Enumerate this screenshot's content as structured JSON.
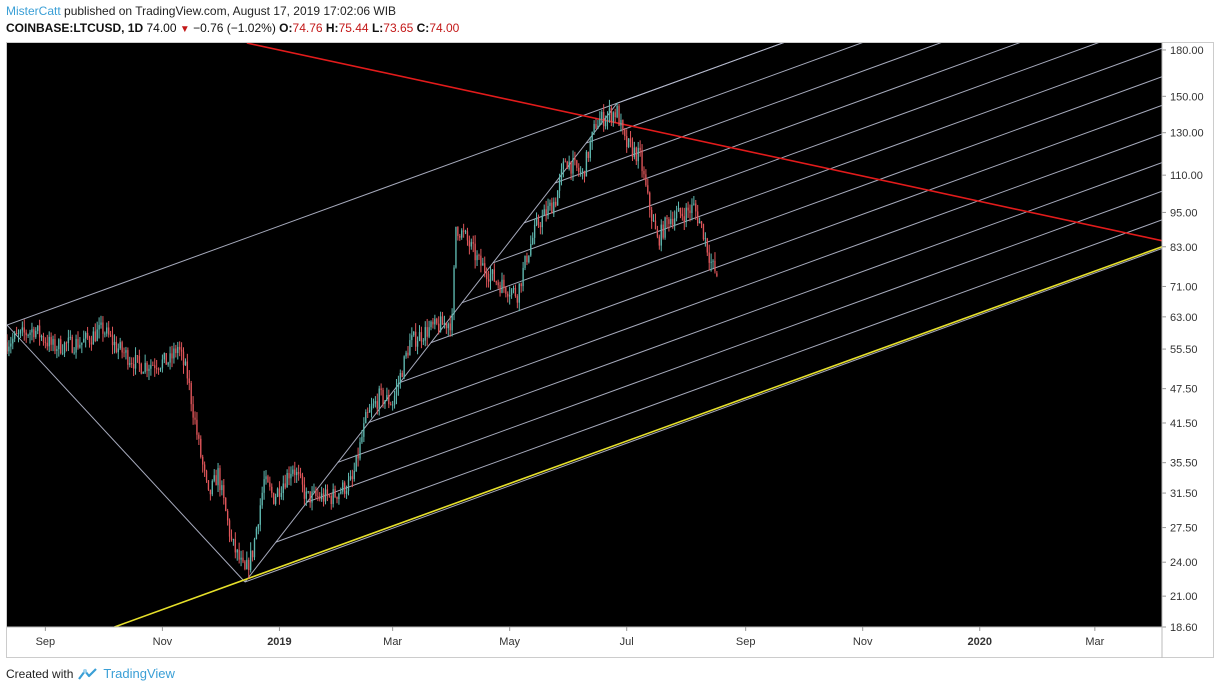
{
  "header": {
    "author": "MisterCatt",
    "published_text": "published on TradingView.com, August 17, 2019 17:02:06 WIB",
    "symbol": "COINBASE:LTCUSD, 1D",
    "last": "74.00",
    "change": "−0.76 (−1.02%)",
    "o_label": "O:",
    "o_value": "74.76",
    "h_label": "H:",
    "h_value": "75.44",
    "l_label": "L:",
    "l_value": "73.65",
    "c_label": "C:",
    "c_value": "74.00",
    "down_icon": "triangle-down-icon"
  },
  "footer": {
    "created_with": "Created with",
    "brand": "TradingView",
    "logo_icon": "tradingview-logo-icon"
  },
  "colors": {
    "background": "#000000",
    "up_candle": "#5fb8b0",
    "down_candle": "#e0565a",
    "fan_lines": "#b8bcd0",
    "red_trendline": "#e21b1b",
    "yellow_trendline": "#e6e02a",
    "axis_text": "#333333"
  },
  "chart_data": {
    "type": "candlestick",
    "symbol": "COINBASE:LTCUSD",
    "interval": "1D",
    "y_scale": "log",
    "y_ticks": [
      "180.00",
      "150.00",
      "130.00",
      "110.00",
      "95.00",
      "83.00",
      "71.00",
      "63.00",
      "55.50",
      "47.50",
      "41.50",
      "35.50",
      "31.50",
      "27.50",
      "24.00",
      "21.00",
      "18.60"
    ],
    "x_ticks": [
      "Sep",
      "Nov",
      "2019",
      "Mar",
      "May",
      "Jul",
      "Sep",
      "Nov",
      "2020",
      "Mar"
    ],
    "x_ticks_bold": [
      "2019",
      "2020"
    ],
    "ylim": [
      18.6,
      185
    ],
    "xlim": [
      "2018-08-12",
      "2020-04-05"
    ],
    "price_path": [
      [
        "2018-08-12",
        57
      ],
      [
        "2018-08-26",
        60
      ],
      [
        "2018-09-05",
        56
      ],
      [
        "2018-09-20",
        57
      ],
      [
        "2018-10-01",
        60
      ],
      [
        "2018-10-08",
        56
      ],
      [
        "2018-10-20",
        52
      ],
      [
        "2018-11-05",
        53
      ],
      [
        "2018-11-09",
        56
      ],
      [
        "2018-11-14",
        50
      ],
      [
        "2018-11-20",
        38
      ],
      [
        "2018-11-25",
        31
      ],
      [
        "2018-11-30",
        34
      ],
      [
        "2018-12-07",
        26
      ],
      [
        "2018-12-14",
        23
      ],
      [
        "2018-12-18",
        25
      ],
      [
        "2018-12-24",
        33
      ],
      [
        "2018-12-29",
        31
      ],
      [
        "2019-01-08",
        35
      ],
      [
        "2019-01-15",
        31
      ],
      [
        "2019-01-28",
        31
      ],
      [
        "2019-02-08",
        33
      ],
      [
        "2019-02-15",
        42
      ],
      [
        "2019-02-22",
        46
      ],
      [
        "2019-03-01",
        45
      ],
      [
        "2019-03-10",
        57
      ],
      [
        "2019-03-20",
        60
      ],
      [
        "2019-04-01",
        62
      ],
      [
        "2019-04-03",
        90
      ],
      [
        "2019-04-08",
        86
      ],
      [
        "2019-04-15",
        78
      ],
      [
        "2019-04-25",
        72
      ],
      [
        "2019-05-05",
        69
      ],
      [
        "2019-05-10",
        80
      ],
      [
        "2019-05-15",
        90
      ],
      [
        "2019-05-25",
        100
      ],
      [
        "2019-05-30",
        117
      ],
      [
        "2019-06-08",
        110
      ],
      [
        "2019-06-15",
        135
      ],
      [
        "2019-06-22",
        140
      ],
      [
        "2019-06-26",
        141
      ],
      [
        "2019-06-30",
        125
      ],
      [
        "2019-07-08",
        118
      ],
      [
        "2019-07-12",
        100
      ],
      [
        "2019-07-17",
        85
      ],
      [
        "2019-07-23",
        93
      ],
      [
        "2019-08-01",
        95
      ],
      [
        "2019-08-05",
        97
      ],
      [
        "2019-08-10",
        88
      ],
      [
        "2019-08-14",
        78
      ],
      [
        "2019-08-17",
        74
      ]
    ],
    "last_candle": {
      "date": "2019-08-17",
      "open": 74.76,
      "high": 75.44,
      "low": 73.65,
      "close": 74.0
    },
    "annotations": {
      "pitchfork_pivots": [
        [
          "2018-08-12",
          61
        ],
        [
          "2018-12-14",
          22.2
        ],
        [
          "2019-06-26",
          146
        ]
      ],
      "pitchfork_lines": 12,
      "red_trendline": [
        [
          "2018-12-15",
          185
        ],
        [
          "2020-04-05",
          85
        ]
      ],
      "yellow_trendline": [
        [
          "2018-10-07",
          18.6
        ],
        [
          "2020-04-05",
          83
        ]
      ]
    }
  }
}
